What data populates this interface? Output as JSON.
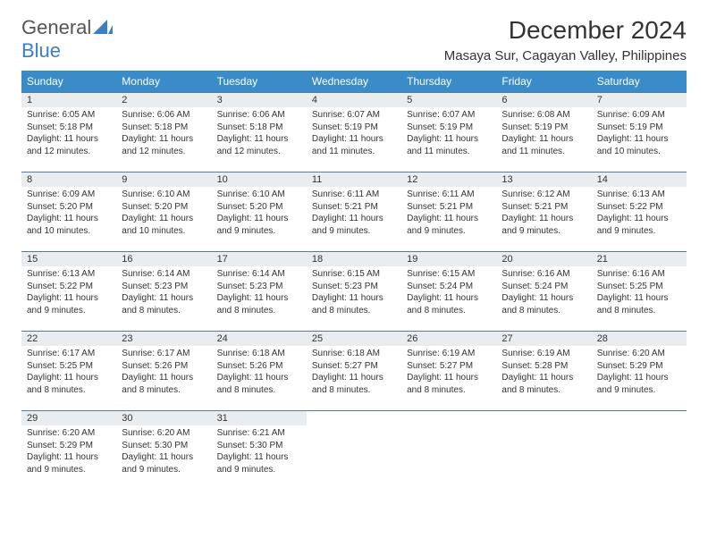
{
  "branding": {
    "word1": "General",
    "word2": "Blue",
    "colors": {
      "word1": "#555555",
      "word2": "#3a7fc4",
      "accent": "#3a8cc9"
    }
  },
  "title": "December 2024",
  "location": "Masaya Sur, Cagayan Valley, Philippines",
  "weekdays": [
    "Sunday",
    "Monday",
    "Tuesday",
    "Wednesday",
    "Thursday",
    "Friday",
    "Saturday"
  ],
  "styling": {
    "header_bg": "#3a8cc9",
    "header_text": "#ffffff",
    "daynum_bg": "#e9edf0",
    "border_color": "#5a7a9a",
    "body_text": "#333333",
    "title_fontsize": 28,
    "location_fontsize": 15,
    "weekday_fontsize": 12,
    "daynum_fontsize": 11,
    "cell_fontsize": 10,
    "page_bg": "#ffffff"
  },
  "weeks": [
    {
      "nums": [
        "1",
        "2",
        "3",
        "4",
        "5",
        "6",
        "7"
      ],
      "cells": [
        {
          "sunrise": "Sunrise: 6:05 AM",
          "sunset": "Sunset: 5:18 PM",
          "day1": "Daylight: 11 hours",
          "day2": "and 12 minutes."
        },
        {
          "sunrise": "Sunrise: 6:06 AM",
          "sunset": "Sunset: 5:18 PM",
          "day1": "Daylight: 11 hours",
          "day2": "and 12 minutes."
        },
        {
          "sunrise": "Sunrise: 6:06 AM",
          "sunset": "Sunset: 5:18 PM",
          "day1": "Daylight: 11 hours",
          "day2": "and 12 minutes."
        },
        {
          "sunrise": "Sunrise: 6:07 AM",
          "sunset": "Sunset: 5:19 PM",
          "day1": "Daylight: 11 hours",
          "day2": "and 11 minutes."
        },
        {
          "sunrise": "Sunrise: 6:07 AM",
          "sunset": "Sunset: 5:19 PM",
          "day1": "Daylight: 11 hours",
          "day2": "and 11 minutes."
        },
        {
          "sunrise": "Sunrise: 6:08 AM",
          "sunset": "Sunset: 5:19 PM",
          "day1": "Daylight: 11 hours",
          "day2": "and 11 minutes."
        },
        {
          "sunrise": "Sunrise: 6:09 AM",
          "sunset": "Sunset: 5:19 PM",
          "day1": "Daylight: 11 hours",
          "day2": "and 10 minutes."
        }
      ]
    },
    {
      "nums": [
        "8",
        "9",
        "10",
        "11",
        "12",
        "13",
        "14"
      ],
      "cells": [
        {
          "sunrise": "Sunrise: 6:09 AM",
          "sunset": "Sunset: 5:20 PM",
          "day1": "Daylight: 11 hours",
          "day2": "and 10 minutes."
        },
        {
          "sunrise": "Sunrise: 6:10 AM",
          "sunset": "Sunset: 5:20 PM",
          "day1": "Daylight: 11 hours",
          "day2": "and 10 minutes."
        },
        {
          "sunrise": "Sunrise: 6:10 AM",
          "sunset": "Sunset: 5:20 PM",
          "day1": "Daylight: 11 hours",
          "day2": "and 9 minutes."
        },
        {
          "sunrise": "Sunrise: 6:11 AM",
          "sunset": "Sunset: 5:21 PM",
          "day1": "Daylight: 11 hours",
          "day2": "and 9 minutes."
        },
        {
          "sunrise": "Sunrise: 6:11 AM",
          "sunset": "Sunset: 5:21 PM",
          "day1": "Daylight: 11 hours",
          "day2": "and 9 minutes."
        },
        {
          "sunrise": "Sunrise: 6:12 AM",
          "sunset": "Sunset: 5:21 PM",
          "day1": "Daylight: 11 hours",
          "day2": "and 9 minutes."
        },
        {
          "sunrise": "Sunrise: 6:13 AM",
          "sunset": "Sunset: 5:22 PM",
          "day1": "Daylight: 11 hours",
          "day2": "and 9 minutes."
        }
      ]
    },
    {
      "nums": [
        "15",
        "16",
        "17",
        "18",
        "19",
        "20",
        "21"
      ],
      "cells": [
        {
          "sunrise": "Sunrise: 6:13 AM",
          "sunset": "Sunset: 5:22 PM",
          "day1": "Daylight: 11 hours",
          "day2": "and 9 minutes."
        },
        {
          "sunrise": "Sunrise: 6:14 AM",
          "sunset": "Sunset: 5:23 PM",
          "day1": "Daylight: 11 hours",
          "day2": "and 8 minutes."
        },
        {
          "sunrise": "Sunrise: 6:14 AM",
          "sunset": "Sunset: 5:23 PM",
          "day1": "Daylight: 11 hours",
          "day2": "and 8 minutes."
        },
        {
          "sunrise": "Sunrise: 6:15 AM",
          "sunset": "Sunset: 5:23 PM",
          "day1": "Daylight: 11 hours",
          "day2": "and 8 minutes."
        },
        {
          "sunrise": "Sunrise: 6:15 AM",
          "sunset": "Sunset: 5:24 PM",
          "day1": "Daylight: 11 hours",
          "day2": "and 8 minutes."
        },
        {
          "sunrise": "Sunrise: 6:16 AM",
          "sunset": "Sunset: 5:24 PM",
          "day1": "Daylight: 11 hours",
          "day2": "and 8 minutes."
        },
        {
          "sunrise": "Sunrise: 6:16 AM",
          "sunset": "Sunset: 5:25 PM",
          "day1": "Daylight: 11 hours",
          "day2": "and 8 minutes."
        }
      ]
    },
    {
      "nums": [
        "22",
        "23",
        "24",
        "25",
        "26",
        "27",
        "28"
      ],
      "cells": [
        {
          "sunrise": "Sunrise: 6:17 AM",
          "sunset": "Sunset: 5:25 PM",
          "day1": "Daylight: 11 hours",
          "day2": "and 8 minutes."
        },
        {
          "sunrise": "Sunrise: 6:17 AM",
          "sunset": "Sunset: 5:26 PM",
          "day1": "Daylight: 11 hours",
          "day2": "and 8 minutes."
        },
        {
          "sunrise": "Sunrise: 6:18 AM",
          "sunset": "Sunset: 5:26 PM",
          "day1": "Daylight: 11 hours",
          "day2": "and 8 minutes."
        },
        {
          "sunrise": "Sunrise: 6:18 AM",
          "sunset": "Sunset: 5:27 PM",
          "day1": "Daylight: 11 hours",
          "day2": "and 8 minutes."
        },
        {
          "sunrise": "Sunrise: 6:19 AM",
          "sunset": "Sunset: 5:27 PM",
          "day1": "Daylight: 11 hours",
          "day2": "and 8 minutes."
        },
        {
          "sunrise": "Sunrise: 6:19 AM",
          "sunset": "Sunset: 5:28 PM",
          "day1": "Daylight: 11 hours",
          "day2": "and 8 minutes."
        },
        {
          "sunrise": "Sunrise: 6:20 AM",
          "sunset": "Sunset: 5:29 PM",
          "day1": "Daylight: 11 hours",
          "day2": "and 9 minutes."
        }
      ]
    },
    {
      "nums": [
        "29",
        "30",
        "31",
        "",
        "",
        "",
        ""
      ],
      "cells": [
        {
          "sunrise": "Sunrise: 6:20 AM",
          "sunset": "Sunset: 5:29 PM",
          "day1": "Daylight: 11 hours",
          "day2": "and 9 minutes."
        },
        {
          "sunrise": "Sunrise: 6:20 AM",
          "sunset": "Sunset: 5:30 PM",
          "day1": "Daylight: 11 hours",
          "day2": "and 9 minutes."
        },
        {
          "sunrise": "Sunrise: 6:21 AM",
          "sunset": "Sunset: 5:30 PM",
          "day1": "Daylight: 11 hours",
          "day2": "and 9 minutes."
        },
        {
          "empty": true
        },
        {
          "empty": true
        },
        {
          "empty": true
        },
        {
          "empty": true
        }
      ]
    }
  ]
}
